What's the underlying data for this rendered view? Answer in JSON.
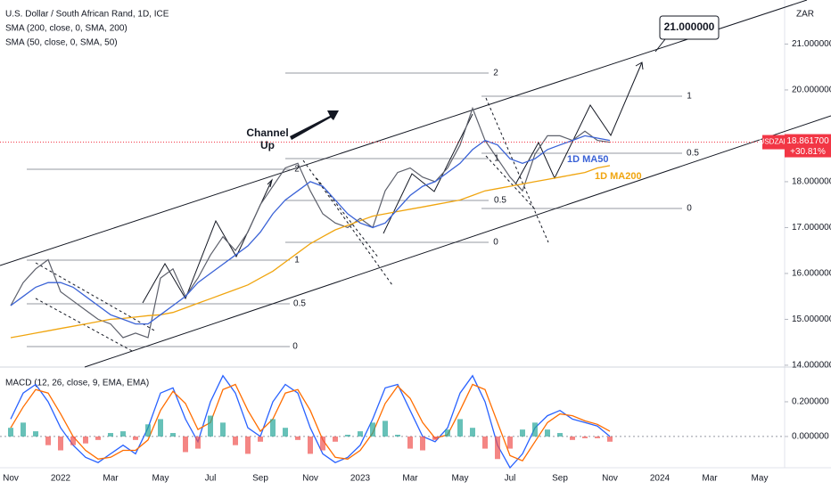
{
  "chart_data": [
    {
      "type": "line",
      "title": "U.S. Dollar / South African Rand, 1D, ICE",
      "categories": [
        "Nov",
        null,
        null,
        null,
        "2022",
        null,
        null,
        null,
        "Mar",
        null,
        null,
        null,
        "May",
        null,
        null,
        null,
        "Jul",
        null,
        null,
        null,
        "Sep",
        null,
        null,
        null,
        "Nov",
        null,
        null,
        null,
        "2023",
        null,
        null,
        null,
        "Mar",
        null,
        null,
        null,
        "May",
        null,
        null,
        null,
        "Jul",
        null,
        null,
        null,
        "Sep",
        null,
        null,
        null,
        "Nov",
        null,
        null,
        null,
        "2024",
        null,
        null,
        null,
        "Mar",
        null,
        null,
        null,
        "May",
        null
      ],
      "ylim": [
        13.96,
        21.96
      ],
      "yticks": [
        {
          "value": 14,
          "label": "14.000000"
        },
        {
          "value": 15,
          "label": "15.000000"
        },
        {
          "value": 16,
          "label": "16.000000"
        },
        {
          "value": 17,
          "label": "17.000000"
        },
        {
          "value": 18,
          "label": "18.000000"
        },
        {
          "value": 20,
          "label": "20.000000"
        },
        {
          "value": 21,
          "label": "21.000000"
        }
      ],
      "grid": false,
      "axis_unit": "ZAR",
      "series": [
        {
          "color": "#5d606b",
          "values": [
            15.3,
            15.8,
            16.1,
            16.3,
            15.6,
            15.4,
            15.2,
            15.0,
            14.9,
            14.6,
            14.7,
            14.6,
            15.9,
            16.1,
            15.5,
            15.9,
            16.4,
            16.8,
            16.5,
            16.9,
            17.5,
            17.9,
            18.3,
            18.4,
            17.8,
            17.3,
            17.1,
            17.0,
            17.2,
            17.0,
            17.8,
            18.2,
            18.3,
            18.1,
            18.0,
            18.3,
            18.8,
            19.6,
            18.9,
            18.5,
            18.1,
            17.8,
            18.6,
            19.0,
            19.0,
            18.9,
            19.1,
            18.9,
            18.86,
            null,
            null,
            null,
            null,
            null,
            null,
            null,
            null,
            null,
            null,
            null,
            null,
            null
          ]
        },
        {
          "name": "SMA (200, close, 0, SMA, 200)",
          "color": "#f0a50f",
          "values": [
            14.6,
            14.65,
            14.7,
            14.75,
            14.8,
            14.85,
            14.9,
            14.95,
            15.0,
            15.02,
            15.05,
            15.08,
            15.1,
            15.15,
            15.25,
            15.35,
            15.45,
            15.55,
            15.65,
            15.75,
            15.9,
            16.05,
            16.25,
            16.45,
            16.65,
            16.8,
            16.95,
            17.05,
            17.15,
            17.25,
            17.3,
            17.35,
            17.4,
            17.45,
            17.5,
            17.55,
            17.6,
            17.7,
            17.8,
            17.85,
            17.9,
            17.95,
            18.0,
            18.05,
            18.1,
            18.15,
            18.2,
            18.3,
            18.35,
            null,
            null,
            null,
            null,
            null,
            null,
            null,
            null,
            null,
            null,
            null,
            null,
            null
          ]
        },
        {
          "name": "SMA (50, close, 0, SMA, 50)",
          "color": "#3a62d6",
          "values": [
            15.3,
            15.5,
            15.7,
            15.8,
            15.8,
            15.7,
            15.5,
            15.3,
            15.1,
            15.0,
            14.9,
            14.9,
            15.1,
            15.3,
            15.5,
            15.8,
            16.0,
            16.2,
            16.4,
            16.6,
            16.9,
            17.3,
            17.6,
            17.8,
            18.0,
            17.9,
            17.6,
            17.3,
            17.1,
            17.0,
            17.1,
            17.4,
            17.7,
            17.9,
            18.0,
            18.2,
            18.4,
            18.7,
            18.9,
            18.8,
            18.5,
            18.4,
            18.5,
            18.7,
            18.8,
            18.9,
            19.0,
            18.95,
            18.9,
            null,
            null,
            null,
            null,
            null,
            null,
            null,
            null,
            null,
            null,
            null,
            null,
            null
          ]
        }
      ],
      "last_price": {
        "symbol": "USDZAR",
        "value": 18.8617,
        "label": "18.861700",
        "change": "+30.81%",
        "color": "#f23645"
      },
      "annotations": [
        "Channel",
        "Up",
        "21.000000",
        "1D MA50",
        "1D MA200",
        "2",
        "1",
        "0.5",
        "0",
        "2",
        "1",
        "0.5",
        "0",
        "1",
        "0.5",
        "0"
      ]
    },
    {
      "type": "line",
      "title": "MACD (12, 26, close, 9, EMA, EMA)",
      "ylim": [
        -0.18,
        0.4
      ],
      "yticks": [
        {
          "value": 0,
          "label": "0.000000"
        },
        {
          "value": 0.2,
          "label": "0.200000"
        }
      ],
      "series": [
        {
          "color": "#2962ff",
          "values": [
            0.1,
            0.25,
            0.3,
            0.2,
            0.05,
            -0.05,
            -0.12,
            -0.15,
            -0.1,
            -0.05,
            -0.1,
            0.05,
            0.25,
            0.28,
            0.1,
            -0.03,
            0.2,
            0.35,
            0.25,
            0.05,
            0.0,
            0.2,
            0.3,
            0.25,
            0.05,
            -0.1,
            -0.15,
            -0.12,
            -0.05,
            0.1,
            0.28,
            0.3,
            0.15,
            0.0,
            -0.03,
            0.05,
            0.25,
            0.35,
            0.2,
            -0.05,
            -0.18,
            -0.1,
            0.05,
            0.12,
            0.15,
            0.1,
            0.08,
            0.06,
            0.0,
            null,
            null,
            null,
            null,
            null,
            null,
            null,
            null,
            null,
            null,
            null,
            null,
            null
          ]
        },
        {
          "color": "#ff6d00",
          "values": [
            0.05,
            0.17,
            0.27,
            0.25,
            0.13,
            0.0,
            -0.08,
            -0.13,
            -0.12,
            -0.08,
            -0.08,
            -0.02,
            0.15,
            0.26,
            0.19,
            0.04,
            0.08,
            0.27,
            0.3,
            0.15,
            0.03,
            0.1,
            0.25,
            0.27,
            0.15,
            -0.02,
            -0.12,
            -0.13,
            -0.08,
            0.02,
            0.19,
            0.29,
            0.22,
            0.08,
            -0.01,
            0.01,
            0.15,
            0.3,
            0.27,
            0.08,
            -0.11,
            -0.14,
            -0.03,
            0.08,
            0.13,
            0.12,
            0.09,
            0.07,
            0.03,
            null,
            null,
            null,
            null,
            null,
            null,
            null,
            null,
            null,
            null,
            null,
            null,
            null
          ]
        },
        {
          "type": "histogram",
          "up_color": "#26a69a",
          "down_color": "#ef5350",
          "values": [
            0.05,
            0.08,
            0.03,
            -0.05,
            -0.08,
            -0.05,
            -0.04,
            -0.02,
            0.02,
            0.03,
            -0.02,
            0.07,
            0.1,
            0.02,
            -0.09,
            -0.07,
            0.12,
            0.08,
            -0.05,
            -0.1,
            -0.03,
            0.1,
            0.05,
            -0.02,
            -0.1,
            -0.08,
            -0.03,
            0.01,
            0.03,
            0.08,
            0.09,
            0.01,
            -0.07,
            -0.08,
            -0.02,
            0.04,
            0.1,
            0.05,
            -0.07,
            -0.13,
            -0.07,
            0.04,
            0.08,
            0.04,
            0.02,
            -0.02,
            -0.01,
            -0.01,
            -0.03,
            null,
            null,
            null,
            null,
            null,
            null,
            null,
            null,
            null,
            null,
            null,
            null,
            null
          ]
        }
      ]
    }
  ]
}
